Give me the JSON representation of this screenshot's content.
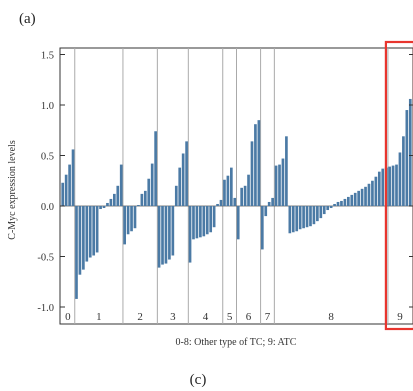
{
  "panel_top": "(a)",
  "panel_bottom": "(c)",
  "chart_data": {
    "type": "bar",
    "title": "",
    "xlabel": "0-8: Other type of TC; 9: ATC",
    "ylabel": "C-Myc expression levels",
    "ylim": [
      -1.15,
      1.5
    ],
    "yticks": [
      1.5,
      1.0,
      0.5,
      0.0,
      -0.5,
      -1.0
    ],
    "ytick_labels": [
      "1.5",
      "1.0",
      "0.5",
      "0.0",
      "-0.5",
      "-1.0"
    ],
    "grid": false,
    "bar_color": "#4b7aa5",
    "highlight_color": "#e8352e",
    "highlight_group": "9",
    "groups": [
      {
        "label": "0",
        "values": [
          0.23,
          0.31,
          0.41,
          0.56
        ]
      },
      {
        "label": "1",
        "values": [
          -0.92,
          -0.68,
          -0.63,
          -0.55,
          -0.51,
          -0.49,
          -0.46,
          -0.03,
          -0.02,
          0.03,
          0.07,
          0.12,
          0.2,
          0.41
        ]
      },
      {
        "label": "2",
        "values": [
          -0.38,
          -0.28,
          -0.25,
          -0.22,
          0.01,
          0.12,
          0.15,
          0.27,
          0.42,
          0.74
        ]
      },
      {
        "label": "3",
        "values": [
          -0.61,
          -0.58,
          -0.57,
          -0.53,
          -0.49,
          0.2,
          0.38,
          0.52,
          0.64
        ]
      },
      {
        "label": "4",
        "values": [
          -0.56,
          -0.33,
          -0.32,
          -0.31,
          -0.3,
          -0.28,
          -0.26,
          -0.21,
          0.02,
          0.06
        ]
      },
      {
        "label": "5",
        "values": [
          0.26,
          0.3,
          0.38,
          0.08
        ]
      },
      {
        "label": "6",
        "values": [
          -0.33,
          0.18,
          0.2,
          0.31,
          0.64,
          0.81,
          0.85
        ]
      },
      {
        "label": "7",
        "values": [
          -0.43,
          -0.1,
          0.04,
          0.08
        ]
      },
      {
        "label": "8",
        "values": [
          0.4,
          0.41,
          0.47,
          0.69,
          -0.27,
          -0.26,
          -0.25,
          -0.23,
          -0.22,
          -0.21,
          -0.2,
          -0.18,
          -0.15,
          -0.12,
          -0.08,
          -0.04,
          -0.02,
          0.02,
          0.04,
          0.05,
          0.07,
          0.09,
          0.11,
          0.13,
          0.15,
          0.17,
          0.19,
          0.22,
          0.25,
          0.29,
          0.34,
          0.37,
          0.38
        ]
      },
      {
        "label": "9",
        "values": [
          0.39,
          0.4,
          0.41,
          0.53,
          0.69,
          0.95,
          1.06
        ]
      }
    ]
  }
}
